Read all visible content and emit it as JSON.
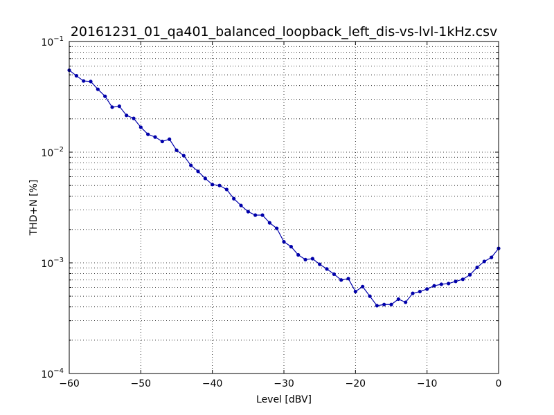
{
  "chart_data": {
    "type": "line",
    "title": "20161231_01_qa401_balanced_loopback_left_dis-vs-lvl-1kHz.csv",
    "xlabel": "Level [dBV]",
    "ylabel": "THD+N [%]",
    "xlim": [
      -60,
      0
    ],
    "ylim": [
      0.0001,
      0.1
    ],
    "yscale": "log",
    "grid": true,
    "x_ticks": [
      -60,
      -50,
      -40,
      -30,
      -20,
      -10,
      0
    ],
    "y_ticks": [
      {
        "base": "10",
        "exp": "-4"
      },
      {
        "base": "10",
        "exp": "-3"
      },
      {
        "base": "10",
        "exp": "-2"
      },
      {
        "base": "10",
        "exp": "-1"
      }
    ],
    "series": [
      {
        "color": "#0000aa",
        "x": [
          -60,
          -59,
          -58,
          -57,
          -56,
          -55,
          -54,
          -53,
          -52,
          -51,
          -50,
          -49,
          -48,
          -47,
          -46,
          -45,
          -44,
          -43,
          -42,
          -41,
          -40,
          -39,
          -38,
          -37,
          -36,
          -35,
          -34,
          -33,
          -32,
          -31,
          -30,
          -29,
          -28,
          -27,
          -26,
          -25,
          -24,
          -23,
          -22,
          -21,
          -20,
          -19,
          -18,
          -17,
          -16,
          -15,
          -14,
          -13,
          -12,
          -11,
          -10,
          -9,
          -8,
          -7,
          -6,
          -5,
          -4,
          -3,
          -2,
          -1,
          0
        ],
        "y": [
          0.055,
          0.049,
          0.044,
          0.0435,
          0.037,
          0.032,
          0.0255,
          0.026,
          0.0215,
          0.0202,
          0.0168,
          0.0145,
          0.0137,
          0.0125,
          0.0131,
          0.0104,
          0.0093,
          0.0076,
          0.0067,
          0.0058,
          0.0051,
          0.005,
          0.0046,
          0.0038,
          0.0033,
          0.0029,
          0.0027,
          0.0027,
          0.0023,
          0.00205,
          0.00155,
          0.0014,
          0.00118,
          0.00107,
          0.00109,
          0.00097,
          0.00088,
          0.00079,
          0.0007,
          0.00072,
          0.00055,
          0.00061,
          0.0005,
          0.00041,
          0.00042,
          0.00042,
          0.00047,
          0.00044,
          0.00053,
          0.00055,
          0.00058,
          0.00062,
          0.00064,
          0.00065,
          0.00068,
          0.00071,
          0.00078,
          0.00091,
          0.00103,
          0.00112,
          0.00135
        ]
      }
    ]
  }
}
